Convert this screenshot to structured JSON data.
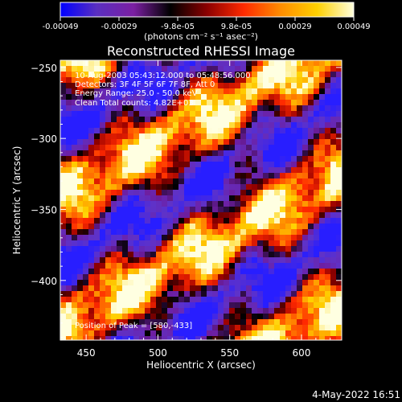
{
  "colorbar": {
    "tick_labels": [
      "-0.00049",
      "-0.00029",
      "-9.8e-05",
      "9.8e-05",
      "0.00029",
      "0.00049"
    ],
    "units_label": "(photons cm⁻² s⁻¹ asec⁻²)",
    "range": [
      -0.00049,
      0.00049
    ],
    "colors": [
      "#0000ff",
      "#5a2fc0",
      "#7b1fa2",
      "#000000",
      "#8b0000",
      "#ff2a00",
      "#ff8c00",
      "#ffd000",
      "#ffffdd"
    ]
  },
  "plot": {
    "title": "Reconstructed RHESSI Image",
    "xlabel": "Heliocentric X (arcsec)",
    "ylabel": "Heliocentric Y (arcsec)",
    "x_ticks": [
      "450",
      "500",
      "550",
      "600"
    ],
    "y_ticks": [
      "-250",
      "-300",
      "-350",
      "-400"
    ],
    "xlim": [
      432,
      628
    ],
    "ylim": [
      -442,
      -245
    ],
    "info": {
      "time_range": "10-Aug-2003 05:43:12.000 to 05:48:56.000",
      "detectors": "Detectors: 3F 4F 5F 6F 7F 8F, Att 0",
      "energy": "Energy Range: 25.0 - 50.0 keV",
      "clean": "Clean     Total counts: 4.82E+03"
    },
    "peak": "Position of Peak = [580,-433]"
  },
  "footer": {
    "timestamp": "4-May-2022 16:51"
  }
}
